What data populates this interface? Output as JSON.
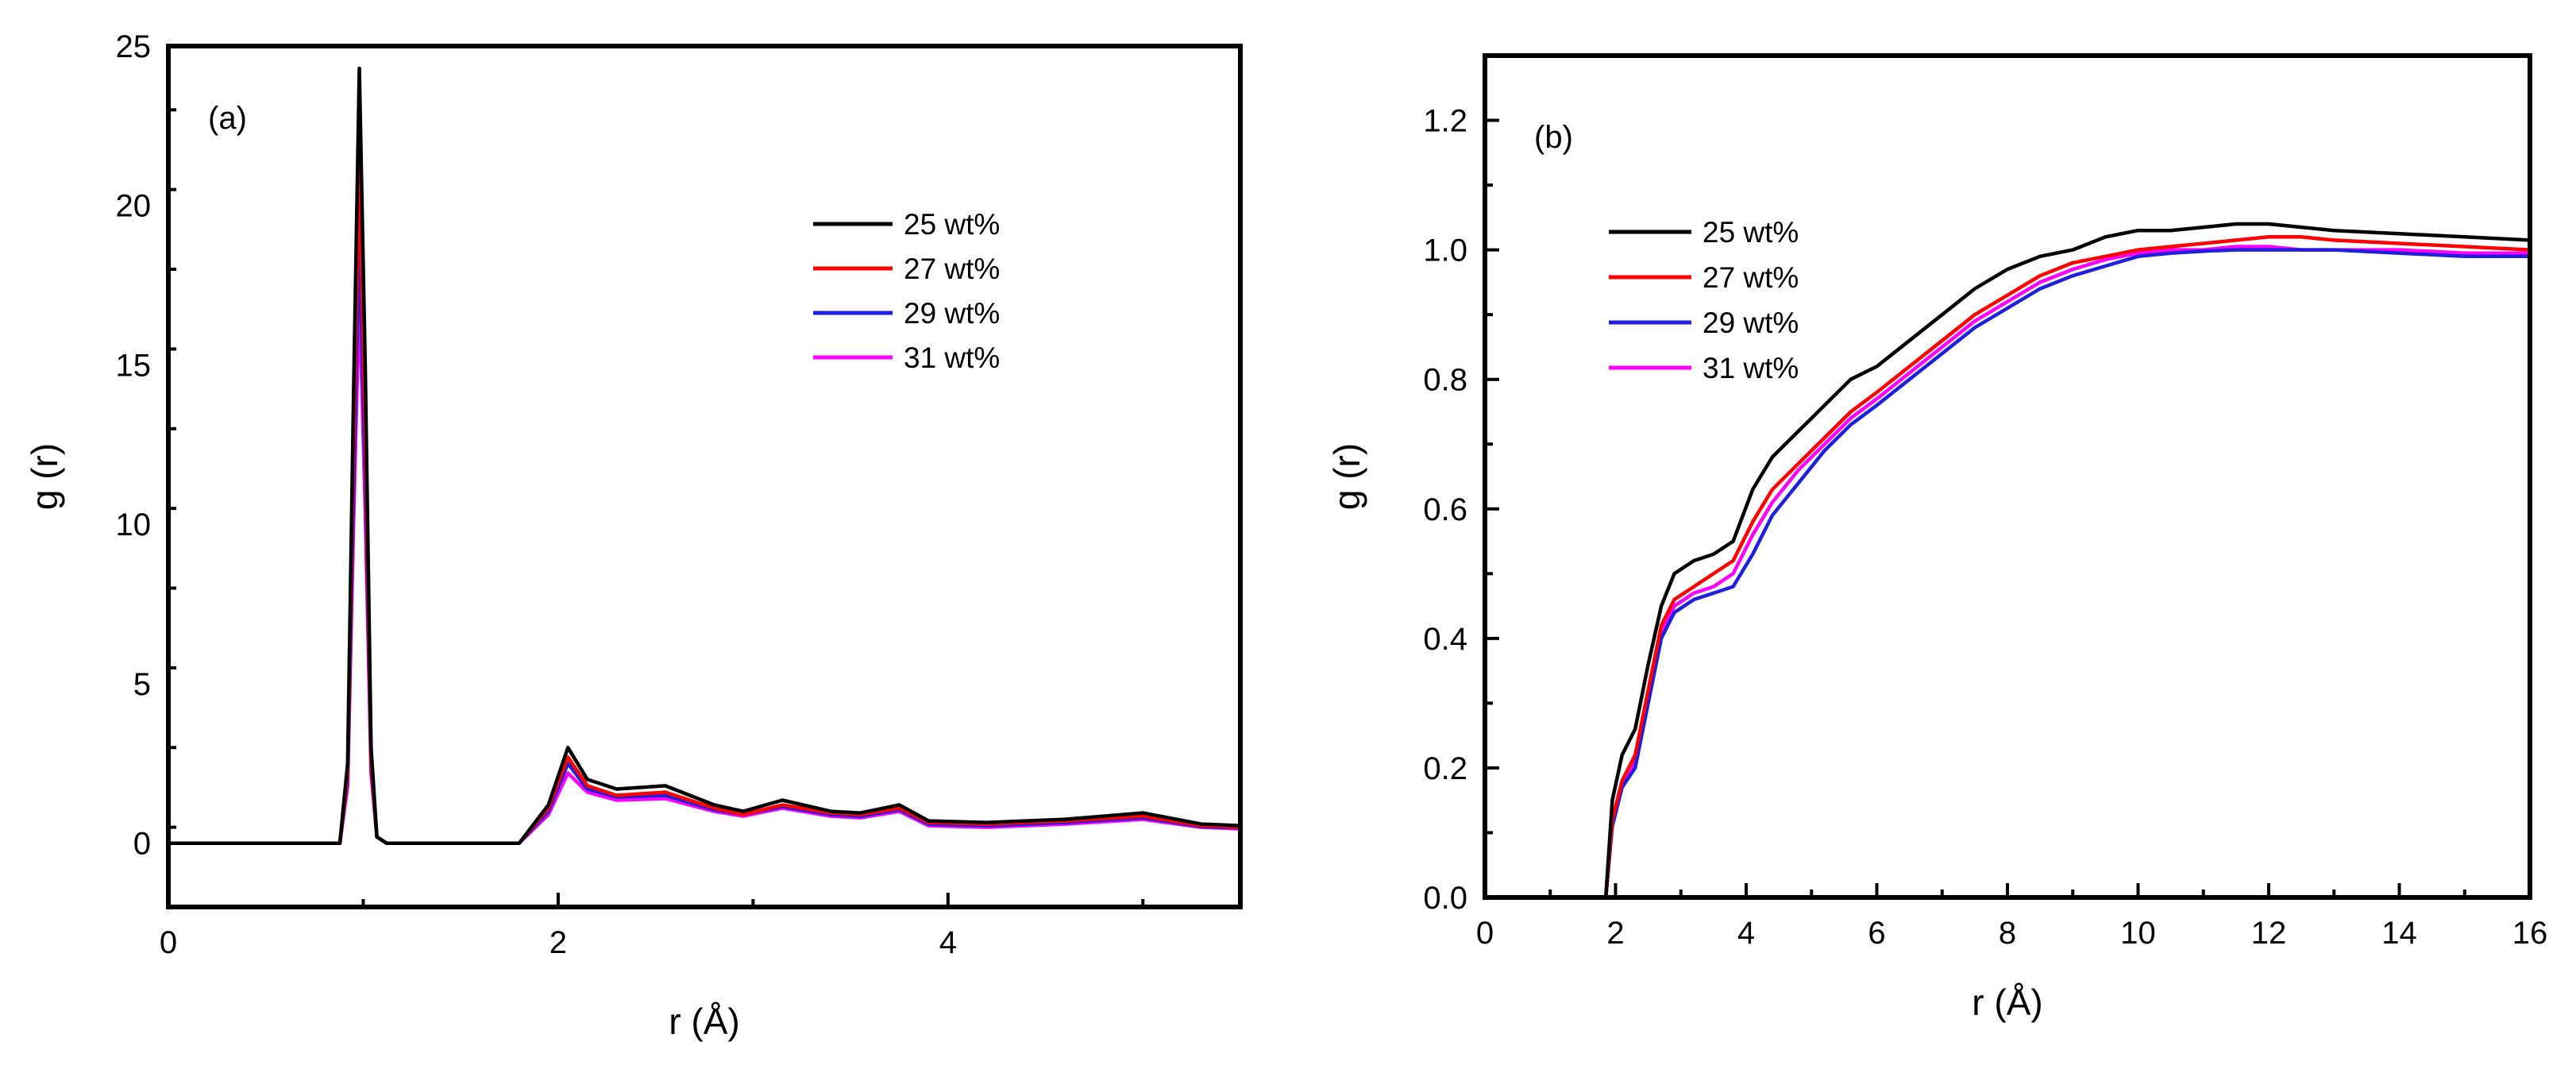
{
  "chart_data": [
    {
      "type": "line",
      "panel_label": "(a)",
      "xlabel": "r (Å)",
      "ylabel": "g (r)",
      "xlim": [
        0,
        5.5
      ],
      "ylim": [
        -2,
        25
      ],
      "xticks": [
        0,
        2,
        4
      ],
      "yticks": [
        0,
        5,
        10,
        15,
        20,
        25
      ],
      "grid": false,
      "legend_position": "top-right",
      "series": [
        {
          "name": "25 wt%",
          "color": "#000000",
          "x": [
            0,
            0.88,
            0.92,
            0.95,
            0.98,
            1.01,
            1.04,
            1.07,
            1.12,
            1.8,
            1.95,
            2.05,
            2.15,
            2.3,
            2.55,
            2.8,
            2.95,
            3.15,
            3.4,
            3.55,
            3.75,
            3.9,
            4.2,
            4.6,
            5.0,
            5.3,
            5.5
          ],
          "y": [
            0,
            0,
            2.5,
            14,
            24.3,
            15,
            3,
            0.2,
            0,
            0,
            1.2,
            3.0,
            2.0,
            1.7,
            1.8,
            1.2,
            1.0,
            1.35,
            1.0,
            0.95,
            1.2,
            0.7,
            0.65,
            0.75,
            0.95,
            0.6,
            0.55
          ]
        },
        {
          "name": "27 wt%",
          "color": "#ff0000",
          "x": [
            0,
            0.88,
            0.92,
            0.95,
            0.98,
            1.01,
            1.04,
            1.07,
            1.12,
            1.8,
            1.95,
            2.05,
            2.15,
            2.3,
            2.55,
            2.8,
            2.95,
            3.15,
            3.4,
            3.55,
            3.75,
            3.9,
            4.2,
            4.6,
            5.0,
            5.3,
            5.5
          ],
          "y": [
            0,
            0,
            2.2,
            12.5,
            21.3,
            13,
            2.6,
            0.2,
            0,
            0,
            1.1,
            2.7,
            1.8,
            1.5,
            1.6,
            1.1,
            0.9,
            1.2,
            0.95,
            0.9,
            1.1,
            0.65,
            0.6,
            0.7,
            0.85,
            0.55,
            0.5
          ]
        },
        {
          "name": "29 wt%",
          "color": "#1f1fdc",
          "x": [
            0,
            0.88,
            0.92,
            0.95,
            0.98,
            1.01,
            1.04,
            1.07,
            1.12,
            1.8,
            1.95,
            2.05,
            2.15,
            2.3,
            2.55,
            2.8,
            2.95,
            3.15,
            3.4,
            3.55,
            3.75,
            3.9,
            4.2,
            4.6,
            5.0,
            5.3,
            5.5
          ],
          "y": [
            0,
            0,
            2.0,
            11,
            19,
            11.5,
            2.4,
            0.2,
            0,
            0,
            1.0,
            2.5,
            1.7,
            1.45,
            1.5,
            1.05,
            0.9,
            1.15,
            0.9,
            0.85,
            1.05,
            0.6,
            0.55,
            0.65,
            0.8,
            0.52,
            0.48
          ]
        },
        {
          "name": "31 wt%",
          "color": "#ff00ff",
          "x": [
            0,
            0.88,
            0.92,
            0.95,
            0.98,
            1.01,
            1.04,
            1.07,
            1.12,
            1.8,
            1.95,
            2.05,
            2.15,
            2.3,
            2.55,
            2.8,
            2.95,
            3.15,
            3.4,
            3.55,
            3.75,
            3.9,
            4.2,
            4.6,
            5.0,
            5.3,
            5.5
          ],
          "y": [
            0,
            0,
            1.8,
            10,
            17.2,
            10.5,
            2.2,
            0.2,
            0,
            0,
            0.9,
            2.2,
            1.6,
            1.35,
            1.4,
            1.0,
            0.85,
            1.1,
            0.85,
            0.8,
            1.0,
            0.55,
            0.5,
            0.6,
            0.75,
            0.5,
            0.45
          ]
        }
      ]
    },
    {
      "type": "line",
      "panel_label": "(b)",
      "xlabel": "r (Å)",
      "ylabel": "g (r)",
      "xlim": [
        0,
        16
      ],
      "ylim": [
        0,
        1.3
      ],
      "xticks": [
        0,
        2,
        4,
        6,
        8,
        10,
        12,
        14,
        16
      ],
      "yticks": [
        0.0,
        0.2,
        0.4,
        0.6,
        0.8,
        1.0,
        1.2
      ],
      "ytick_labels": [
        "0.0",
        "0.2",
        "0.4",
        "0.6",
        "0.8",
        "1.0",
        "1.2"
      ],
      "grid": false,
      "legend_position": "top-left",
      "series": [
        {
          "name": "25 wt%",
          "color": "#000000",
          "x": [
            0,
            1.85,
            1.95,
            2.1,
            2.3,
            2.5,
            2.7,
            2.9,
            3.2,
            3.5,
            3.8,
            4.1,
            4.4,
            4.8,
            5.2,
            5.6,
            6.0,
            6.5,
            7.0,
            7.5,
            8.0,
            8.5,
            9.0,
            9.5,
            10.0,
            10.5,
            11.0,
            11.5,
            12.0,
            12.5,
            13.0,
            14.0,
            15.0,
            16.0
          ],
          "y": [
            0,
            0,
            0.15,
            0.22,
            0.26,
            0.36,
            0.45,
            0.5,
            0.52,
            0.53,
            0.55,
            0.63,
            0.68,
            0.72,
            0.76,
            0.8,
            0.82,
            0.86,
            0.9,
            0.94,
            0.97,
            0.99,
            1.0,
            1.02,
            1.03,
            1.03,
            1.035,
            1.04,
            1.04,
            1.035,
            1.03,
            1.025,
            1.02,
            1.015
          ]
        },
        {
          "name": "27 wt%",
          "color": "#ff0000",
          "x": [
            0,
            1.85,
            1.95,
            2.1,
            2.3,
            2.5,
            2.7,
            2.9,
            3.2,
            3.5,
            3.8,
            4.1,
            4.4,
            4.8,
            5.2,
            5.6,
            6.0,
            6.5,
            7.0,
            7.5,
            8.0,
            8.5,
            9.0,
            9.5,
            10.0,
            10.5,
            11.0,
            11.5,
            12.0,
            12.5,
            13.0,
            14.0,
            15.0,
            16.0
          ],
          "y": [
            0,
            0,
            0.12,
            0.18,
            0.22,
            0.32,
            0.42,
            0.46,
            0.48,
            0.5,
            0.52,
            0.58,
            0.63,
            0.67,
            0.71,
            0.75,
            0.78,
            0.82,
            0.86,
            0.9,
            0.93,
            0.96,
            0.98,
            0.99,
            1.0,
            1.005,
            1.01,
            1.015,
            1.02,
            1.02,
            1.015,
            1.01,
            1.005,
            1.0
          ]
        },
        {
          "name": "29 wt%",
          "color": "#1f1fdc",
          "x": [
            0,
            1.85,
            1.95,
            2.1,
            2.3,
            2.5,
            2.7,
            2.9,
            3.2,
            3.5,
            3.8,
            4.1,
            4.4,
            4.8,
            5.2,
            5.6,
            6.0,
            6.5,
            7.0,
            7.5,
            8.0,
            8.5,
            9.0,
            9.5,
            10.0,
            10.5,
            11.0,
            11.5,
            12.0,
            12.5,
            13.0,
            14.0,
            15.0,
            16.0
          ],
          "y": [
            0,
            0,
            0.11,
            0.17,
            0.2,
            0.3,
            0.4,
            0.44,
            0.46,
            0.47,
            0.48,
            0.53,
            0.59,
            0.64,
            0.69,
            0.73,
            0.76,
            0.8,
            0.84,
            0.88,
            0.91,
            0.94,
            0.96,
            0.975,
            0.99,
            0.995,
            0.998,
            1.0,
            1.0,
            1.0,
            1.0,
            0.995,
            0.99,
            0.99
          ]
        },
        {
          "name": "31 wt%",
          "color": "#ff00ff",
          "x": [
            0,
            1.85,
            1.95,
            2.1,
            2.3,
            2.5,
            2.7,
            2.9,
            3.2,
            3.5,
            3.8,
            4.1,
            4.4,
            4.8,
            5.2,
            5.6,
            6.0,
            6.5,
            7.0,
            7.5,
            8.0,
            8.5,
            9.0,
            9.5,
            10.0,
            10.5,
            11.0,
            11.5,
            12.0,
            12.5,
            13.0,
            14.0,
            15.0,
            16.0
          ],
          "y": [
            0,
            0,
            0.12,
            0.17,
            0.21,
            0.31,
            0.41,
            0.45,
            0.47,
            0.48,
            0.5,
            0.56,
            0.61,
            0.66,
            0.7,
            0.74,
            0.77,
            0.81,
            0.85,
            0.89,
            0.92,
            0.95,
            0.97,
            0.985,
            0.995,
            1.0,
            1.0,
            1.005,
            1.005,
            1.0,
            1.0,
            1.0,
            0.995,
            0.995
          ]
        }
      ]
    }
  ]
}
